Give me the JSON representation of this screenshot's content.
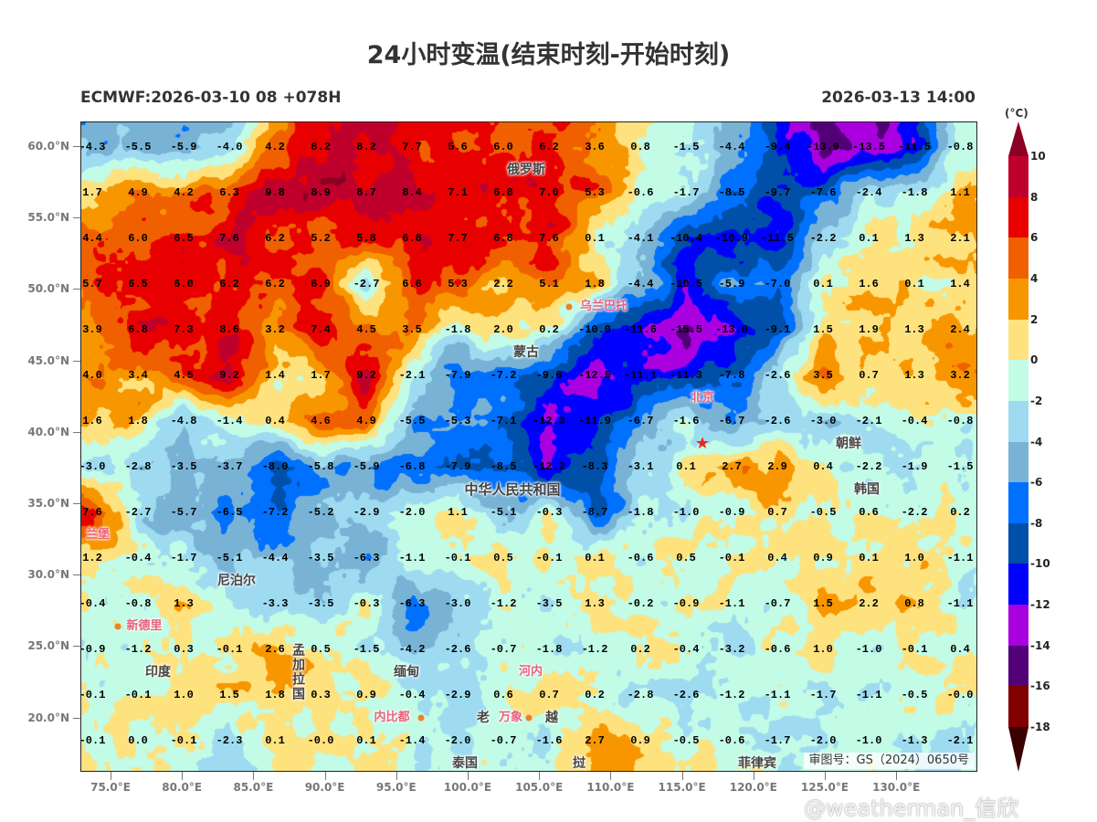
{
  "title": "24小时变温(结束时刻-开始时刻)",
  "subtitle_left": "ECMWF:2026-03-10 08 +078H",
  "subtitle_right": "2026-03-13 14:00",
  "axes": {
    "x_ticks": [
      "75.0°E",
      "80.0°E",
      "85.0°E",
      "90.0°E",
      "95.0°E",
      "100.0°E",
      "105.0°E",
      "110.0°E",
      "115.0°E",
      "120.0°E",
      "125.0°E",
      "130.0°E"
    ],
    "y_ticks": [
      "60.0°N",
      "55.0°N",
      "50.0°N",
      "45.0°N",
      "40.0°N",
      "35.0°N",
      "30.0°N",
      "25.0°N",
      "20.0°N"
    ]
  },
  "colorbar": {
    "unit": "(°C)",
    "labels": [
      "10",
      "8",
      "6",
      "4",
      "2",
      "0",
      "-2",
      "-4",
      "-6",
      "-8",
      "-10",
      "-12",
      "-14",
      "-16",
      "-18"
    ],
    "over_color": "#8b0024",
    "under_color": "#3a0000",
    "colors": [
      "#c0002c",
      "#e80000",
      "#f06000",
      "#f89600",
      "#fde27e",
      "#c2fbe6",
      "#9edbf1",
      "#78b3d6",
      "#0070ff",
      "#0050aa",
      "#0000ff",
      "#aa00e0",
      "#520078",
      "#800000"
    ]
  },
  "grid": {
    "rows": [
      [
        "-4.3",
        "-5.5",
        "-5.9",
        "-4.0",
        "4.2",
        "8.2",
        "8.2",
        "7.7",
        "5.6",
        "6.0",
        "6.2",
        "3.6",
        "0.8",
        "-1.5",
        "-4.4",
        "-9.4",
        "-13.9",
        "-13.5",
        "-11.5",
        "-0.8"
      ],
      [
        "1.7",
        "4.9",
        "4.2",
        "6.3",
        "9.8",
        "8.9",
        "8.7",
        "8.4",
        "7.1",
        "6.8",
        "7.0",
        "5.3",
        "-0.6",
        "-1.7",
        "-8.5",
        "-9.7",
        "-7.6",
        "-2.4",
        "-1.8",
        "1.1"
      ],
      [
        "4.4",
        "6.0",
        "6.5",
        "7.6",
        "6.2",
        "5.2",
        "5.8",
        "6.8",
        "7.7",
        "6.8",
        "7.6",
        "0.1",
        "-4.1",
        "-10.4",
        "-10.9",
        "-11.5",
        "-2.2",
        "0.1",
        "1.3",
        "2.1"
      ],
      [
        "5.7",
        "6.5",
        "6.0",
        "6.2",
        "6.2",
        "6.9",
        "-2.7",
        "6.6",
        "5.3",
        "2.2",
        "5.1",
        "1.8",
        "-4.4",
        "-10.5",
        "-5.9",
        "-7.0",
        "0.1",
        "1.6",
        "0.1",
        "1.4"
      ],
      [
        "3.9",
        "6.8",
        "7.3",
        "8.6",
        "3.2",
        "7.4",
        "4.5",
        "3.5",
        "-1.8",
        "2.0",
        "0.2",
        "-10.0",
        "-11.6",
        "-15.5",
        "-13.0",
        "-9.1",
        "1.5",
        "1.9",
        "1.3",
        "2.4"
      ],
      [
        "4.0",
        "3.4",
        "4.5",
        "9.2",
        "1.4",
        "1.7",
        "9.2",
        "-2.1",
        "-7.9",
        "-7.2",
        "-9.6",
        "-12.5",
        "-11.1",
        "-11.3",
        "-7.8",
        "-2.6",
        "3.5",
        "0.7",
        "1.3",
        "3.2"
      ],
      [
        "1.6",
        "1.8",
        "-4.8",
        "-1.4",
        "0.4",
        "4.6",
        "4.9",
        "-5.5",
        "-5.3",
        "-7.1",
        "-12.3",
        "-11.9",
        "-6.7",
        "-1.6",
        "-6.7",
        "-2.6",
        "-3.0",
        "-2.1",
        "-0.4",
        "-0.8"
      ],
      [
        "-3.0",
        "-2.8",
        "-3.5",
        "-3.7",
        "-8.0",
        "-5.8",
        "-5.9",
        "-6.8",
        "-7.9",
        "-8.5",
        "-12.2",
        "-8.3",
        "-3.1",
        "0.1",
        "2.7",
        "2.9",
        "0.4",
        "-2.2",
        "-1.9",
        "-1.5"
      ],
      [
        "7.6",
        "-2.7",
        "-5.7",
        "-6.5",
        "-7.2",
        "-5.2",
        "-2.9",
        "-2.0",
        "1.1",
        "-5.1",
        "-0.3",
        "-8.7",
        "-1.8",
        "-1.0",
        "-0.9",
        "0.7",
        "-0.5",
        "0.6",
        "-2.2",
        "0.2"
      ],
      [
        "1.2",
        "-0.4",
        "-1.7",
        "-5.1",
        "-4.4",
        "-3.5",
        "-6.3",
        "-1.1",
        "-0.1",
        "0.5",
        "-0.1",
        "0.1",
        "-0.6",
        "0.5",
        "-0.1",
        "0.4",
        "0.9",
        "0.1",
        "1.0",
        "-1.1"
      ],
      [
        "-0.4",
        "-0.8",
        "1.3",
        null,
        "-3.3",
        "-3.5",
        "-0.3",
        "-6.3",
        "-3.0",
        "-1.2",
        "-3.5",
        "1.3",
        "-0.2",
        "-0.9",
        "-1.1",
        "-0.7",
        "1.5",
        "2.2",
        "0.8",
        "-1.1"
      ],
      [
        "-0.9",
        "-1.2",
        "0.3",
        "-0.1",
        "2.6",
        "0.5",
        "-1.5",
        "-4.2",
        "-2.6",
        "-0.7",
        "-1.8",
        "-1.2",
        "0.2",
        "-0.4",
        "-3.2",
        "-0.6",
        "1.0",
        "-1.0",
        "-0.1",
        "0.4"
      ],
      [
        "-0.1",
        "-0.1",
        "1.0",
        "1.5",
        "1.8",
        "0.3",
        "0.9",
        "-0.4",
        "-2.9",
        "0.6",
        "0.7",
        "0.2",
        "-2.8",
        "-2.6",
        "-1.2",
        "-1.1",
        "-1.7",
        "-1.1",
        "-0.5",
        "-0.0"
      ],
      [
        "-0.1",
        "0.0",
        "-0.1",
        "-2.3",
        "0.1",
        "-0.0",
        "0.1",
        "-1.4",
        "-2.0",
        "-0.7",
        "-1.6",
        "2.7",
        "0.9",
        "-0.5",
        "-0.6",
        "-1.7",
        "-2.0",
        "-1.0",
        "-1.3",
        "-2.1"
      ]
    ]
  },
  "places": [
    {
      "text": "俄罗斯"
    },
    {
      "text": "蒙古"
    },
    {
      "text": "乌兰巴托"
    },
    {
      "text": "北京"
    },
    {
      "text": "朝鲜"
    },
    {
      "text": "韩国"
    },
    {
      "text": "中华人民共和国"
    },
    {
      "text": "尼泊尔"
    },
    {
      "text": "新德里"
    },
    {
      "text": "印度"
    },
    {
      "text": "孟加拉国"
    },
    {
      "text": "缅甸"
    },
    {
      "text": "内比都"
    },
    {
      "text": "河内"
    },
    {
      "text": "老"
    },
    {
      "text": "万象"
    },
    {
      "text": "越"
    },
    {
      "text": "泰国"
    },
    {
      "text": "菲律宾"
    },
    {
      "text": "兰堡"
    },
    {
      "text": "挝"
    }
  ],
  "approval_note": "审图号：GS（2024）0650号",
  "watermark": "@weatherman_信欣"
}
